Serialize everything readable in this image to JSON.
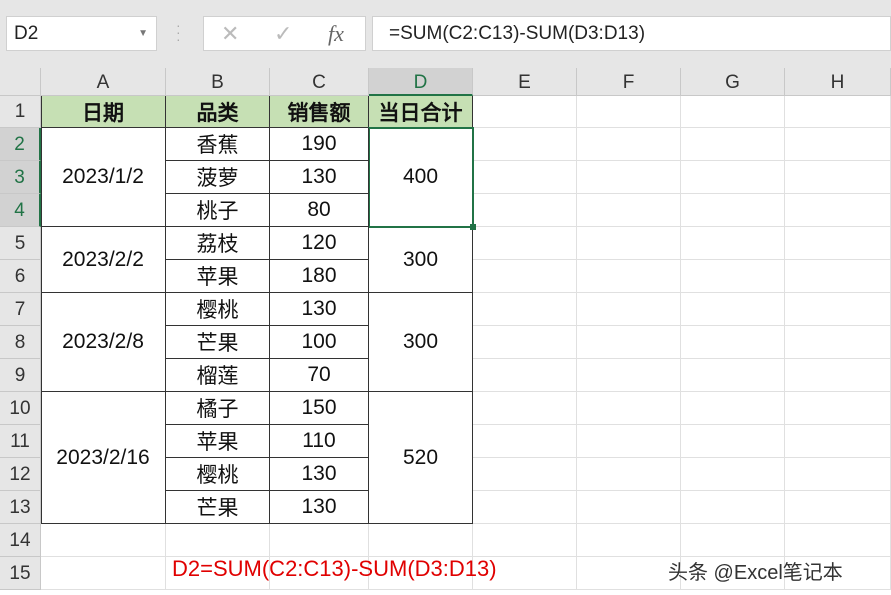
{
  "name_box": "D2",
  "formula": "=SUM(C2:C13)-SUM(D3:D13)",
  "columns": [
    "A",
    "B",
    "C",
    "D",
    "E",
    "F",
    "G",
    "H"
  ],
  "rows": [
    "1",
    "2",
    "3",
    "4",
    "5",
    "6",
    "7",
    "8",
    "9",
    "10",
    "11",
    "12",
    "13",
    "14",
    "15"
  ],
  "headers": [
    "日期",
    "品类",
    "销售额",
    "当日合计"
  ],
  "dates": [
    "2023/1/2",
    "2023/2/2",
    "2023/2/8",
    "2023/2/16"
  ],
  "categories": [
    "香蕉",
    "菠萝",
    "桃子",
    "荔枝",
    "苹果",
    "樱桃",
    "芒果",
    "榴莲",
    "橘子",
    "苹果",
    "樱桃",
    "芒果"
  ],
  "sales": [
    "190",
    "130",
    "80",
    "120",
    "180",
    "130",
    "100",
    "70",
    "150",
    "110",
    "130",
    "130"
  ],
  "totals": [
    "400",
    "300",
    "300",
    "520"
  ],
  "note": "D2=SUM(C2:C13)-SUM(D3:D13)",
  "watermark": "头条 @Excel笔记本",
  "accent": "#217346",
  "header_fill": "#c6e0b4"
}
